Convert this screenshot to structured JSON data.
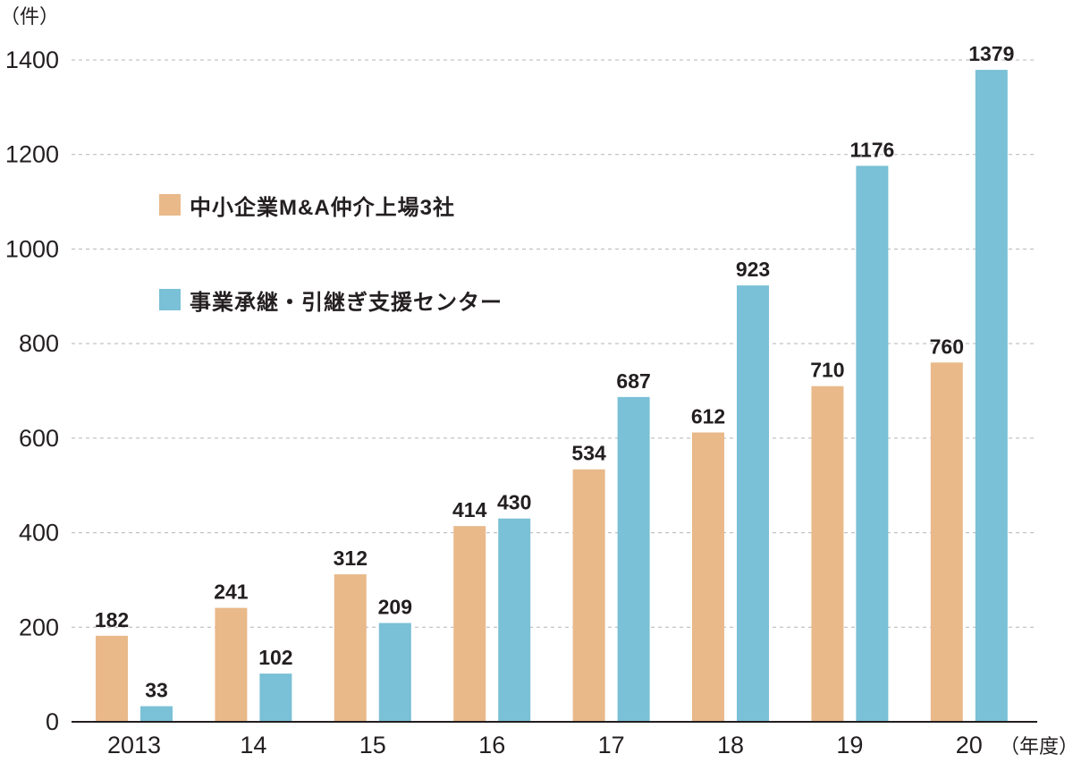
{
  "chart_data": {
    "type": "bar",
    "y_unit": "（件）",
    "x_unit": "（年度）",
    "categories": [
      "2013",
      "14",
      "15",
      "16",
      "17",
      "18",
      "19",
      "20"
    ],
    "series": [
      {
        "name": "中小企業M&A仲介上場3社",
        "color": "#e9b98a",
        "values": [
          182,
          241,
          312,
          414,
          534,
          612,
          710,
          760
        ]
      },
      {
        "name": "事業承継・引継ぎ支援センター",
        "color": "#7ac0d6",
        "values": [
          33,
          102,
          209,
          430,
          687,
          923,
          1176,
          1379
        ]
      }
    ],
    "yticks": [
      0,
      200,
      400,
      600,
      800,
      1000,
      1200,
      1400
    ],
    "ylim": [
      0,
      1400
    ],
    "grid": "dashed horizontal",
    "legend_position": "top-left"
  }
}
